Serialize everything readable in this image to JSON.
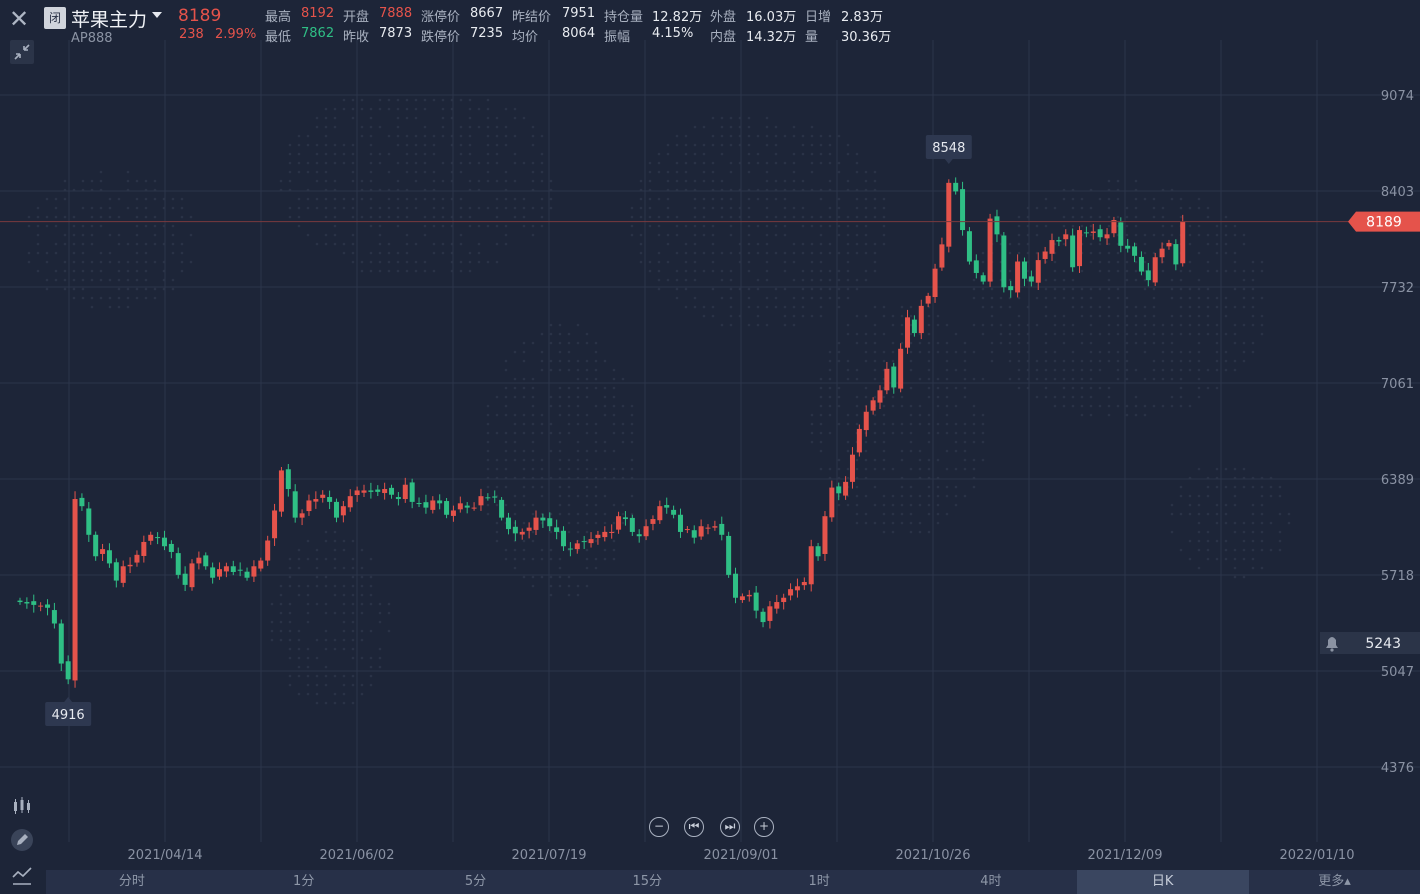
{
  "header": {
    "status_badge": "闭",
    "contract_name": "苹果主力",
    "contract_code": "AP888",
    "last_price": "8189",
    "change": "238",
    "change_pct": "2.99%"
  },
  "quote": {
    "row1": [
      {
        "label": "最高",
        "value": "8192",
        "color": "red"
      },
      {
        "label": "开盘",
        "value": "7888",
        "color": "red"
      },
      {
        "label": "涨停价",
        "value": "8667",
        "color": "white"
      },
      {
        "label": "昨结价",
        "value": "7951",
        "color": "white"
      },
      {
        "label": "持仓量",
        "value": "12.82万",
        "color": "white"
      },
      {
        "label": "外盘",
        "value": "16.03万",
        "color": "white"
      },
      {
        "label": "日增",
        "value": "2.83万",
        "color": "white"
      }
    ],
    "row2": [
      {
        "label": "最低",
        "value": "7862",
        "color": "green"
      },
      {
        "label": "昨收",
        "value": "7873",
        "color": "white"
      },
      {
        "label": "跌停价",
        "value": "7235",
        "color": "white"
      },
      {
        "label": "均价",
        "value": "8064",
        "color": "white"
      },
      {
        "label": "振幅",
        "value": "4.15%",
        "color": "white"
      },
      {
        "label": "内盘",
        "value": "14.32万",
        "color": "white"
      },
      {
        "label": "量",
        "value": "30.36万",
        "color": "white"
      }
    ]
  },
  "timeframe_tabs": [
    {
      "label": "分时",
      "active": false
    },
    {
      "label": "1分",
      "active": false
    },
    {
      "label": "5分",
      "active": false
    },
    {
      "label": "15分",
      "active": false
    },
    {
      "label": "1时",
      "active": false
    },
    {
      "label": "4时",
      "active": false
    },
    {
      "label": "日K",
      "active": true
    },
    {
      "label": "更多▴",
      "active": false
    }
  ],
  "chart_controls": [
    "zoom-out",
    "previous",
    "next",
    "zoom-in"
  ],
  "colors": {
    "background": "#1d2538",
    "up": "#e5534b",
    "down": "#2fbf85",
    "axis_text": "#8a92a3",
    "last_price_tag": "#e5534b"
  },
  "chart_data": {
    "type": "candlestick",
    "title": "",
    "xlabel": "",
    "ylabel": "",
    "y_axis_position": "right",
    "y_ticks": [
      9074,
      8403,
      7732,
      7061,
      6389,
      5718,
      5047,
      4376
    ],
    "x_ticks": [
      "2021/04/14",
      "2021/06/02",
      "2021/07/19",
      "2021/09/01",
      "2021/10/26",
      "2021/12/09",
      "2022/01/10"
    ],
    "grid": true,
    "annotations": {
      "high": "8548",
      "low": "4916",
      "last_price_tag": "8189",
      "alert_price": "5243"
    },
    "closes": [
      5530,
      5520,
      5510,
      5505,
      5490,
      5380,
      5100,
      4990,
      6250,
      6200,
      6000,
      5850,
      5900,
      5800,
      5680,
      5780,
      5790,
      5860,
      5950,
      6000,
      5980,
      5920,
      5880,
      5720,
      5650,
      5800,
      5840,
      5780,
      5700,
      5760,
      5780,
      5740,
      5750,
      5700,
      5780,
      5820,
      5960,
      6170,
      6450,
      6320,
      6120,
      6150,
      6240,
      6250,
      6280,
      6230,
      6120,
      6200,
      6270,
      6310,
      6310,
      6300,
      6300,
      6320,
      6280,
      6250,
      6350,
      6230,
      6220,
      6190,
      6240,
      6220,
      6140,
      6170,
      6220,
      6190,
      6190,
      6270,
      6260,
      6260,
      6120,
      6040,
      6010,
      6020,
      6050,
      6120,
      6100,
      6060,
      6020,
      5920,
      5900,
      5940,
      5950,
      5970,
      6000,
      6020,
      6020,
      6130,
      6110,
      6020,
      5990,
      6060,
      6110,
      6200,
      6190,
      6140,
      6020,
      6040,
      5980,
      6060,
      6050,
      6060,
      6000,
      5720,
      5560,
      5570,
      5580,
      5470,
      5390,
      5500,
      5530,
      5560,
      5620,
      5640,
      5670,
      5920,
      5850,
      6130,
      6330,
      6290,
      6370,
      6560,
      6740,
      6860,
      6940,
      7010,
      7160,
      7030,
      7300,
      7520,
      7410,
      7600,
      7670,
      7860,
      8030,
      8460,
      8400,
      8130,
      7910,
      7830,
      7770,
      8210,
      8100,
      7730,
      7710,
      7910,
      7790,
      7770,
      7920,
      7980,
      8060,
      8050,
      8100,
      7870,
      8130,
      8110,
      8120,
      8080,
      8100,
      8200,
      8020,
      8000,
      7950,
      7840,
      7780,
      7940,
      8000,
      8040,
      7890,
      8189
    ]
  }
}
